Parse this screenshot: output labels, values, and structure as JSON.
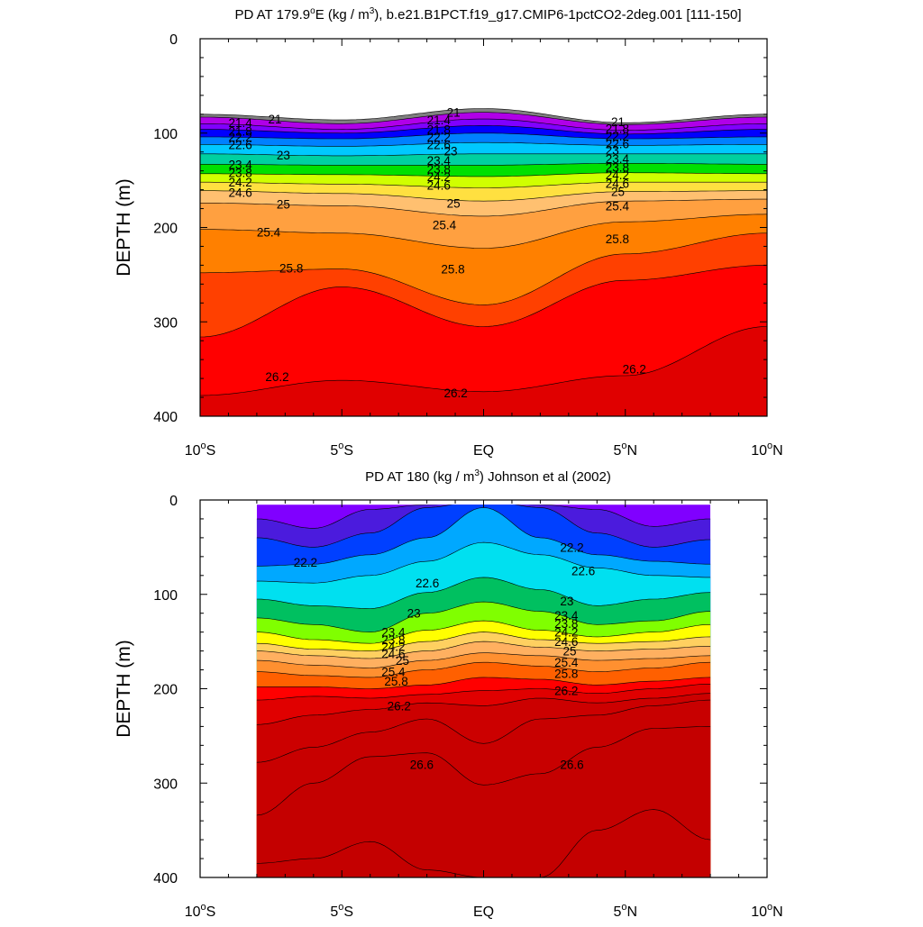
{
  "chart_data": [
    {
      "type": "contour",
      "title": "PD AT 179.9°E (kg / m³), b.e21.B1PCT.f19_g17.CMIP6-1pctCO2-2deg.001 [111-150]",
      "title_parts": {
        "pre": "PD AT 179.9",
        "deg": "o",
        "mid": "E (kg / m",
        "sup": "3",
        "post": "), b.e21.B1PCT.f19_g17.CMIP6-1pctCO2-2deg.001 [111-150]"
      },
      "ylabel": "DEPTH (m)",
      "xlim": [
        -10,
        10
      ],
      "ylim": [
        0,
        400
      ],
      "y_reversed": true,
      "x_ticks": [
        {
          "value": -10,
          "num": "10",
          "hemi": "S",
          "deg": true
        },
        {
          "value": -5,
          "num": "5",
          "hemi": "S",
          "deg": true
        },
        {
          "value": 0,
          "num": "EQ",
          "hemi": "",
          "deg": false
        },
        {
          "value": 5,
          "num": "5",
          "hemi": "N",
          "deg": true
        },
        {
          "value": 10,
          "num": "10",
          "hemi": "N",
          "deg": true
        }
      ],
      "y_ticks": [
        0,
        100,
        200,
        300,
        400
      ],
      "level_start": 20.8,
      "level_step": 0.2,
      "level_count": 28,
      "colormap": [
        "#ffffff",
        "#808080",
        "#b000e8",
        "#e000e0",
        "#8000ff",
        "#4b1bdd",
        "#0000ff",
        "#0040ff",
        "#0080ff",
        "#00a8ff",
        "#00c8ff",
        "#00e0f0",
        "#00d0a0",
        "#00c060",
        "#00e000",
        "#80ff00",
        "#d0ff00",
        "#ffff00",
        "#ffe040",
        "#ffd060",
        "#ffc070",
        "#ffb060",
        "#ffa040",
        "#ff9030",
        "#ff8000",
        "#ff6000",
        "#ff4000",
        "#ff0000",
        "#e00000",
        "#cc0000"
      ],
      "x_samples": [
        -10,
        -5,
        0,
        5,
        10
      ],
      "isopycnal_depths": [
        {
          "level": 20.8,
          "depths": [
            80,
            86,
            74,
            89,
            80
          ]
        },
        {
          "level": 21.0,
          "depths": [
            83,
            90,
            78,
            91,
            83
          ]
        },
        {
          "level": 21.4,
          "depths": [
            90,
            96,
            85,
            97,
            90
          ]
        },
        {
          "level": 21.8,
          "depths": [
            96,
            100,
            92,
            101,
            96
          ]
        },
        {
          "level": 22.2,
          "depths": [
            104,
            106,
            100,
            106,
            104
          ]
        },
        {
          "level": 22.6,
          "depths": [
            112,
            114,
            110,
            113,
            112
          ]
        },
        {
          "level": 23.0,
          "depths": [
            122,
            124,
            122,
            122,
            122
          ]
        },
        {
          "level": 23.4,
          "depths": [
            133,
            134,
            134,
            132,
            133
          ]
        },
        {
          "level": 23.8,
          "depths": [
            143,
            144,
            146,
            142,
            143
          ]
        },
        {
          "level": 24.2,
          "depths": [
            152,
            154,
            158,
            152,
            152
          ]
        },
        {
          "level": 24.6,
          "depths": [
            161,
            164,
            172,
            162,
            161
          ]
        },
        {
          "level": 25.0,
          "depths": [
            174,
            177,
            188,
            172,
            170
          ]
        },
        {
          "level": 25.4,
          "depths": [
            202,
            206,
            222,
            194,
            186
          ]
        },
        {
          "level": 25.8,
          "depths": [
            248,
            244,
            282,
            228,
            206
          ]
        },
        {
          "level": 26.0,
          "depths": [
            316,
            263,
            305,
            256,
            240
          ]
        },
        {
          "level": 26.2,
          "depths": [
            378,
            362,
            374,
            357,
            305
          ]
        }
      ],
      "contour_labels": [
        {
          "text": "21",
          "x": -7.6,
          "y": 85
        },
        {
          "text": "21.4",
          "x": -9.0,
          "y": 89
        },
        {
          "text": "21.8",
          "x": -9.0,
          "y": 98
        },
        {
          "text": "22.2",
          "x": -9.0,
          "y": 104
        },
        {
          "text": "22.6",
          "x": -9.0,
          "y": 112
        },
        {
          "text": "23",
          "x": -7.3,
          "y": 123
        },
        {
          "text": "23.4",
          "x": -9.0,
          "y": 133
        },
        {
          "text": "23.8",
          "x": -9.0,
          "y": 142
        },
        {
          "text": "24.2",
          "x": -9.0,
          "y": 152
        },
        {
          "text": "24.6",
          "x": -9.0,
          "y": 163
        },
        {
          "text": "25",
          "x": -7.3,
          "y": 175
        },
        {
          "text": "25.4",
          "x": -8.0,
          "y": 205
        },
        {
          "text": "25.8",
          "x": -7.2,
          "y": 243
        },
        {
          "text": "26.2",
          "x": -7.7,
          "y": 358
        },
        {
          "text": "21",
          "x": -1.3,
          "y": 78
        },
        {
          "text": "21.4",
          "x": -2.0,
          "y": 86
        },
        {
          "text": "21.8",
          "x": -2.0,
          "y": 96
        },
        {
          "text": "22.2",
          "x": -2.0,
          "y": 104
        },
        {
          "text": "22.6",
          "x": -2.0,
          "y": 112
        },
        {
          "text": "23",
          "x": -1.4,
          "y": 119
        },
        {
          "text": "23.4",
          "x": -2.0,
          "y": 129
        },
        {
          "text": "23.8",
          "x": -2.0,
          "y": 138
        },
        {
          "text": "24.2",
          "x": -2.0,
          "y": 146
        },
        {
          "text": "24.6",
          "x": -2.0,
          "y": 155
        },
        {
          "text": "25",
          "x": -1.3,
          "y": 174
        },
        {
          "text": "25.4",
          "x": -1.8,
          "y": 197
        },
        {
          "text": "25.8",
          "x": -1.5,
          "y": 244
        },
        {
          "text": "26.2",
          "x": -1.4,
          "y": 375
        },
        {
          "text": "21",
          "x": 4.5,
          "y": 88
        },
        {
          "text": "21.8",
          "x": 4.3,
          "y": 95
        },
        {
          "text": "22.2",
          "x": 4.3,
          "y": 103
        },
        {
          "text": "22.6",
          "x": 4.3,
          "y": 111
        },
        {
          "text": "23",
          "x": 4.3,
          "y": 118
        },
        {
          "text": "23.4",
          "x": 4.3,
          "y": 127
        },
        {
          "text": "23.8",
          "x": 4.3,
          "y": 136
        },
        {
          "text": "24.2",
          "x": 4.3,
          "y": 144
        },
        {
          "text": "24.6",
          "x": 4.3,
          "y": 153
        },
        {
          "text": "25",
          "x": 4.5,
          "y": 162
        },
        {
          "text": "25.4",
          "x": 4.3,
          "y": 177
        },
        {
          "text": "25.8",
          "x": 4.3,
          "y": 212
        },
        {
          "text": "26.2",
          "x": 4.9,
          "y": 350
        }
      ]
    },
    {
      "type": "contour",
      "title": "PD AT 180 (kg / m³) Johnson et al (2002)",
      "title_parts": {
        "pre": "PD AT 180 (kg / m",
        "deg": "",
        "mid": "",
        "sup": "3",
        "post": ") Johnson et al (2002)"
      },
      "ylabel": "DEPTH (m)",
      "xlim": [
        -10,
        10
      ],
      "ylim": [
        0,
        400
      ],
      "y_reversed": true,
      "data_x_range": [
        -8,
        8
      ],
      "x_ticks": [
        {
          "value": -10,
          "num": "10",
          "hemi": "S",
          "deg": true
        },
        {
          "value": -5,
          "num": "5",
          "hemi": "S",
          "deg": true
        },
        {
          "value": 0,
          "num": "EQ",
          "hemi": "",
          "deg": false
        },
        {
          "value": 5,
          "num": "5",
          "hemi": "N",
          "deg": true
        },
        {
          "value": 10,
          "num": "10",
          "hemi": "N",
          "deg": true
        }
      ],
      "y_ticks": [
        0,
        100,
        200,
        300,
        400
      ],
      "level_start": 20.8,
      "level_step": 0.2,
      "level_count": 30,
      "colormap": [
        "#b000e8",
        "#b000e8",
        "#e000e0",
        "#8000ff",
        "#4b1bdd",
        "#0000ff",
        "#0040ff",
        "#0080ff",
        "#00a8ff",
        "#00c8ff",
        "#00e0f0",
        "#00d0a0",
        "#00c060",
        "#00e000",
        "#80ff00",
        "#d0ff00",
        "#ffff00",
        "#ffe040",
        "#ffd060",
        "#ffc070",
        "#ffb060",
        "#ffa040",
        "#ff9030",
        "#ff8000",
        "#ff6000",
        "#ff4000",
        "#ff0000",
        "#e00000",
        "#cc0000",
        "#c80000",
        "#c40000"
      ],
      "x_samples": [
        -8,
        -6,
        -4,
        -2,
        0,
        2,
        4,
        6,
        8
      ],
      "isopycnal_depths": [
        {
          "level": 21.4,
          "depths": [
            20,
            30,
            10,
            5,
            0,
            5,
            10,
            28,
            20
          ]
        },
        {
          "level": 21.8,
          "depths": [
            40,
            50,
            35,
            8,
            0,
            8,
            35,
            50,
            42
          ]
        },
        {
          "level": 22.2,
          "depths": [
            70,
            68,
            58,
            40,
            8,
            40,
            58,
            65,
            68
          ]
        },
        {
          "level": 22.6,
          "depths": [
            86,
            88,
            80,
            65,
            45,
            58,
            72,
            80,
            82
          ]
        },
        {
          "level": 23.0,
          "depths": [
            105,
            112,
            115,
            98,
            82,
            95,
            112,
            105,
            98
          ]
        },
        {
          "level": 23.4,
          "depths": [
            125,
            132,
            140,
            120,
            108,
            118,
            132,
            128,
            118
          ]
        },
        {
          "level": 23.8,
          "depths": [
            140,
            148,
            152,
            138,
            128,
            138,
            145,
            140,
            132
          ]
        },
        {
          "level": 24.2,
          "depths": [
            152,
            158,
            160,
            150,
            140,
            148,
            152,
            150,
            145
          ]
        },
        {
          "level": 24.6,
          "depths": [
            160,
            165,
            168,
            160,
            150,
            156,
            160,
            158,
            155
          ]
        },
        {
          "level": 25.0,
          "depths": [
            170,
            175,
            178,
            170,
            162,
            165,
            170,
            168,
            165
          ]
        },
        {
          "level": 25.4,
          "depths": [
            182,
            186,
            188,
            180,
            172,
            176,
            182,
            178,
            172
          ]
        },
        {
          "level": 25.8,
          "depths": [
            198,
            198,
            200,
            196,
            188,
            190,
            196,
            192,
            188
          ]
        },
        {
          "level": 26.0,
          "depths": [
            212,
            208,
            210,
            206,
            202,
            200,
            205,
            200,
            195
          ]
        },
        {
          "level": 26.2,
          "depths": [
            238,
            228,
            222,
            215,
            218,
            210,
            215,
            210,
            205
          ]
        },
        {
          "level": 26.4,
          "depths": [
            278,
            262,
            246,
            232,
            258,
            232,
            228,
            218,
            212
          ]
        },
        {
          "level": 26.6,
          "depths": [
            334,
            300,
            272,
            268,
            302,
            290,
            262,
            242,
            240
          ]
        },
        {
          "level": 26.8,
          "depths": [
            385,
            380,
            362,
            392,
            400,
            400,
            350,
            328,
            360
          ]
        }
      ],
      "contour_labels": [
        {
          "text": "22.2",
          "x": -6.7,
          "y": 66
        },
        {
          "text": "22.6",
          "x": -2.4,
          "y": 88
        },
        {
          "text": "23",
          "x": -2.7,
          "y": 120
        },
        {
          "text": "23.4",
          "x": -3.6,
          "y": 140
        },
        {
          "text": "23.8",
          "x": -3.6,
          "y": 148
        },
        {
          "text": "24.2",
          "x": -3.6,
          "y": 155
        },
        {
          "text": "24.6",
          "x": -3.6,
          "y": 163
        },
        {
          "text": "25",
          "x": -3.1,
          "y": 170
        },
        {
          "text": "25.4",
          "x": -3.6,
          "y": 182
        },
        {
          "text": "25.8",
          "x": -3.5,
          "y": 192
        },
        {
          "text": "26.2",
          "x": -3.4,
          "y": 218
        },
        {
          "text": "26.6",
          "x": -2.6,
          "y": 280
        },
        {
          "text": "22.2",
          "x": 2.7,
          "y": 50
        },
        {
          "text": "22.6",
          "x": 3.1,
          "y": 75
        },
        {
          "text": "23",
          "x": 2.7,
          "y": 107
        },
        {
          "text": "23.4",
          "x": 2.5,
          "y": 122
        },
        {
          "text": "23.8",
          "x": 2.5,
          "y": 131
        },
        {
          "text": "24.2",
          "x": 2.5,
          "y": 140
        },
        {
          "text": "24.6",
          "x": 2.5,
          "y": 150
        },
        {
          "text": "25",
          "x": 2.8,
          "y": 160
        },
        {
          "text": "25.4",
          "x": 2.5,
          "y": 172
        },
        {
          "text": "25.8",
          "x": 2.5,
          "y": 184
        },
        {
          "text": "26.2",
          "x": 2.5,
          "y": 202
        },
        {
          "text": "26.6",
          "x": 2.7,
          "y": 280
        }
      ]
    }
  ]
}
